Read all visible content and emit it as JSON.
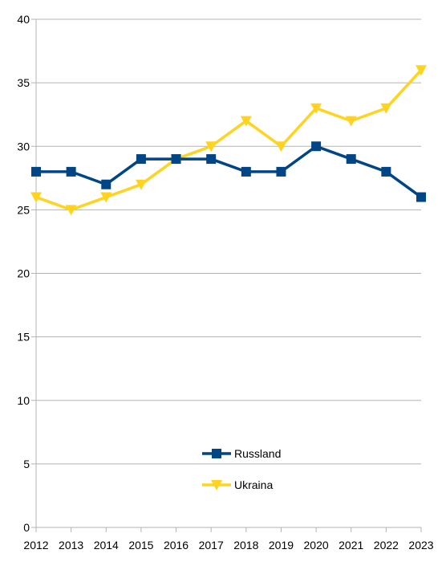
{
  "chart_data": {
    "type": "line",
    "x": [
      "2012",
      "2013",
      "2014",
      "2015",
      "2016",
      "2017",
      "2018",
      "2019",
      "2020",
      "2021",
      "2022",
      "2023"
    ],
    "yticks": [
      "0",
      "5",
      "10",
      "15",
      "20",
      "25",
      "30",
      "35",
      "40"
    ],
    "ylim": [
      0,
      40
    ],
    "grid": true,
    "legend_position": "bottom-center",
    "series": [
      {
        "name": "Russland",
        "color": "#004586",
        "marker": "square",
        "values": [
          28,
          28,
          27,
          29,
          29,
          29,
          28,
          28,
          30,
          29,
          28,
          26
        ]
      },
      {
        "name": "Ukraina",
        "color": "#FFD320",
        "marker": "triangle-down",
        "values": [
          26,
          25,
          26,
          27,
          29,
          30,
          32,
          30,
          33,
          32,
          33,
          36
        ]
      }
    ]
  }
}
